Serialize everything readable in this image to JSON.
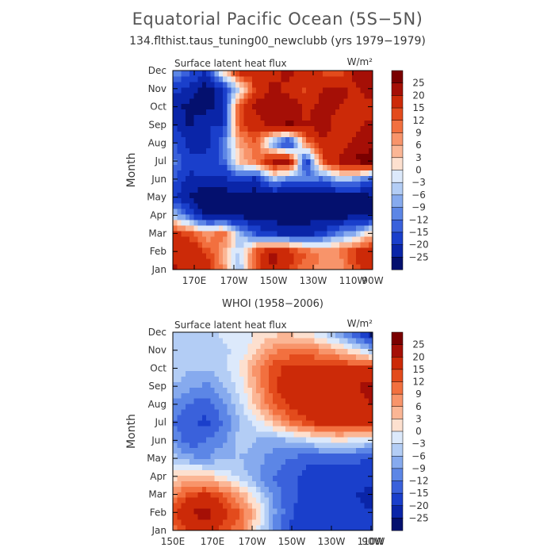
{
  "title": "Equatorial Pacific Ocean (5S−5N)",
  "subtitle": "134.flthist.taus_tuning00_newclubb (yrs 1979−1979)",
  "chart_data": [
    {
      "type": "heatmap",
      "panel_title": "",
      "variable": "Surface latent heat flux",
      "units": "W/m²",
      "ylabel": "Month",
      "months": [
        "Jan",
        "Feb",
        "Mar",
        "Apr",
        "May",
        "Jun",
        "Jul",
        "Aug",
        "Sep",
        "Oct",
        "Nov",
        "Dec"
      ],
      "lon_ticks": [
        "170E",
        "170W",
        "150W",
        "130W",
        "110W",
        "90W"
      ],
      "xlim": [
        "150E",
        "90W"
      ],
      "levels": [
        -25,
        -20,
        -15,
        -12,
        -9,
        -6,
        -3,
        0,
        3,
        6,
        9,
        12,
        15,
        20,
        25
      ],
      "grid_lon": [
        "150E",
        "160E",
        "170E",
        "180",
        "170W",
        "160W",
        "150W",
        "140W",
        "130W",
        "120W",
        "110W",
        "100W",
        "90W"
      ],
      "values": [
        [
          22,
          14,
          20,
          8,
          -6,
          14,
          20,
          14,
          10,
          8,
          6,
          14,
          18
        ],
        [
          18,
          20,
          14,
          6,
          -4,
          14,
          22,
          18,
          12,
          8,
          10,
          16,
          20
        ],
        [
          16,
          14,
          6,
          12,
          -6,
          -16,
          -20,
          -22,
          -22,
          -18,
          -10,
          -6,
          4
        ],
        [
          -4,
          -16,
          -26,
          -26,
          -26,
          -28,
          -28,
          -28,
          -28,
          -28,
          -28,
          -26,
          -26
        ],
        [
          -18,
          -26,
          -30,
          -28,
          -26,
          -28,
          -30,
          -30,
          -30,
          -28,
          -30,
          -28,
          -26
        ],
        [
          -14,
          -22,
          -20,
          -22,
          -18,
          -22,
          -6,
          -12,
          -10,
          -14,
          -6,
          -8,
          -16
        ],
        [
          -10,
          -18,
          -16,
          -14,
          4,
          10,
          22,
          24,
          -20,
          14,
          22,
          26,
          28
        ],
        [
          -14,
          -22,
          -24,
          -12,
          6,
          12,
          -10,
          -22,
          10,
          18,
          16,
          22,
          24
        ],
        [
          -20,
          -26,
          -20,
          -20,
          14,
          18,
          22,
          26,
          20,
          24,
          16,
          18,
          22
        ],
        [
          -24,
          -26,
          -28,
          -20,
          14,
          22,
          20,
          24,
          18,
          22,
          20,
          18,
          16
        ],
        [
          -18,
          -22,
          -28,
          -22,
          -2,
          16,
          22,
          18,
          14,
          20,
          22,
          18,
          26
        ],
        [
          -8,
          -14,
          -20,
          4,
          18,
          20,
          18,
          22,
          18,
          14,
          12,
          24,
          22
        ]
      ]
    },
    {
      "type": "heatmap",
      "panel_title": "WHOI (1958−2006)",
      "variable": "Surface latent heat flux",
      "units": "W/m²",
      "ylabel": "Month",
      "months": [
        "Jan",
        "Feb",
        "Mar",
        "Apr",
        "May",
        "Jun",
        "Jul",
        "Aug",
        "Sep",
        "Oct",
        "Nov",
        "Dec"
      ],
      "lon_ticks": [
        "150E",
        "170E",
        "170W",
        "150W",
        "130W",
        "110W",
        "90W"
      ],
      "xlim": [
        "150E",
        "90W"
      ],
      "levels": [
        -25,
        -20,
        -15,
        -12,
        -9,
        -6,
        -3,
        0,
        3,
        6,
        9,
        12,
        15,
        20,
        25
      ],
      "grid_lon": [
        "150E",
        "160E",
        "170E",
        "180",
        "170W",
        "160W",
        "150W",
        "140W",
        "130W",
        "120W",
        "110W",
        "100W",
        "90W"
      ],
      "values": [
        [
          10,
          16,
          18,
          14,
          10,
          0,
          -10,
          -16,
          -18,
          -18,
          -18,
          -16,
          -18
        ],
        [
          14,
          20,
          22,
          16,
          12,
          4,
          -8,
          -14,
          -18,
          -20,
          -20,
          -18,
          -20
        ],
        [
          8,
          14,
          16,
          12,
          6,
          -2,
          -10,
          -14,
          -16,
          -18,
          -20,
          -20,
          -22
        ],
        [
          2,
          4,
          4,
          0,
          -4,
          -8,
          -12,
          -14,
          -16,
          -18,
          -18,
          -18,
          -18
        ],
        [
          -4,
          -8,
          -10,
          -6,
          -6,
          -8,
          -10,
          -12,
          -14,
          -14,
          -14,
          -14,
          -16
        ],
        [
          -10,
          -14,
          -12,
          -10,
          -4,
          -6,
          -8,
          -6,
          -4,
          -2,
          0,
          -2,
          -4
        ],
        [
          -12,
          -14,
          -16,
          -12,
          -6,
          -2,
          4,
          10,
          14,
          18,
          18,
          18,
          18
        ],
        [
          -10,
          -12,
          -14,
          -10,
          -4,
          4,
          12,
          16,
          18,
          20,
          18,
          18,
          20
        ],
        [
          -6,
          -8,
          -10,
          -6,
          -2,
          6,
          14,
          18,
          16,
          18,
          18,
          20,
          22
        ],
        [
          -4,
          -6,
          -6,
          -4,
          0,
          8,
          14,
          16,
          16,
          18,
          18,
          16,
          16
        ],
        [
          -4,
          -4,
          -6,
          -4,
          -2,
          2,
          8,
          10,
          10,
          8,
          4,
          0,
          -6
        ],
        [
          -4,
          -6,
          -4,
          -2,
          -2,
          0,
          2,
          2,
          0,
          -4,
          -10,
          -16,
          -24
        ]
      ]
    }
  ],
  "colorbar": {
    "labels": [
      "25",
      "20",
      "15",
      "12",
      "9",
      "6",
      "3",
      "0",
      "−3",
      "−6",
      "−9",
      "−12",
      "−15",
      "−20",
      "−25"
    ],
    "colors": [
      "#7a0000",
      "#a50f06",
      "#cc2a08",
      "#e34b1c",
      "#f2703f",
      "#f8946a",
      "#fbb695",
      "#fde0cf",
      "#dce9fb",
      "#b3cdf5",
      "#86aaee",
      "#5c86e6",
      "#3a61db",
      "#1a3fcb",
      "#0a25a8",
      "#04106e"
    ]
  }
}
